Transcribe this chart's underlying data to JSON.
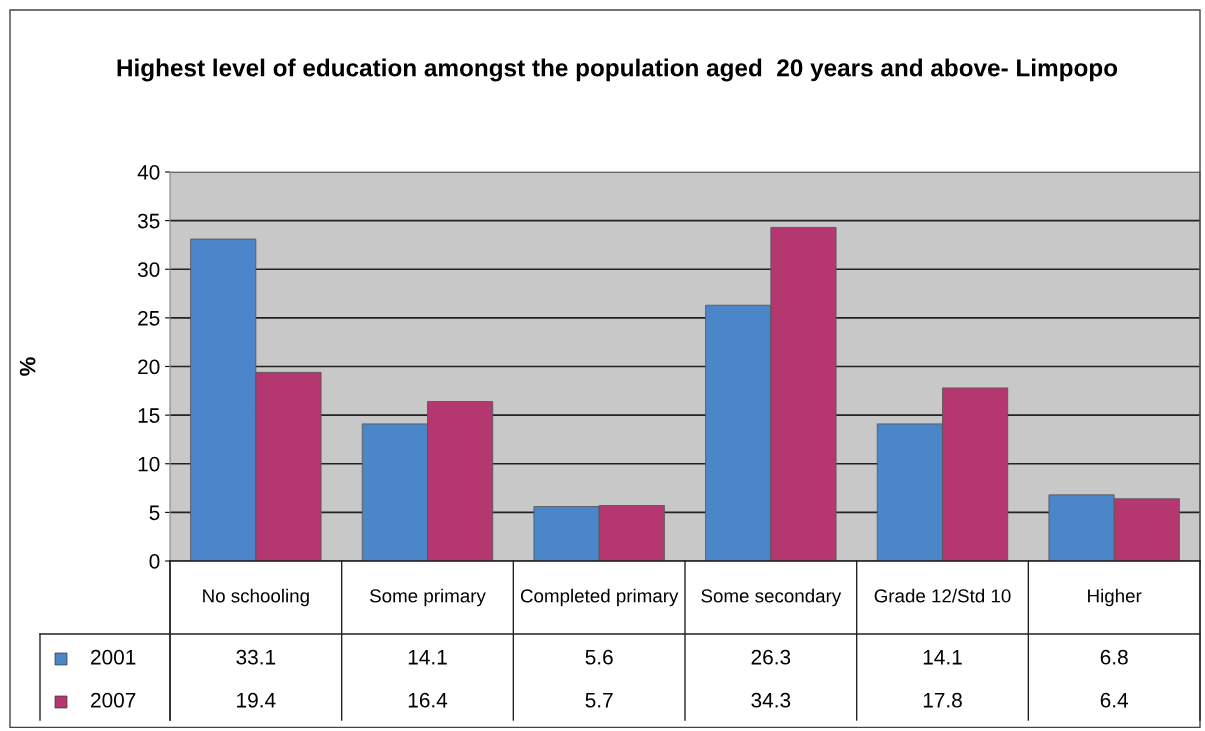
{
  "chart_data": {
    "type": "bar",
    "title": "Highest level of education amongst the population aged  20 years and above- Limpopo",
    "ylabel": "%",
    "categories": [
      "No schooling",
      "Some primary",
      "Completed primary",
      "Some secondary",
      "Grade 12/Std 10",
      "Higher"
    ],
    "series": [
      {
        "name": "2001",
        "color": "#4a86c8",
        "values": [
          33.1,
          14.1,
          5.6,
          26.3,
          14.1,
          6.8
        ]
      },
      {
        "name": "2007",
        "color": "#b5376f",
        "values": [
          19.4,
          16.4,
          5.7,
          34.3,
          17.8,
          6.4
        ]
      }
    ],
    "ylim": [
      0,
      40
    ],
    "yticks": [
      0,
      5,
      10,
      15,
      20,
      25,
      30,
      35,
      40
    ],
    "grid": "y",
    "legend": "bottom left",
    "data_labels": true
  }
}
